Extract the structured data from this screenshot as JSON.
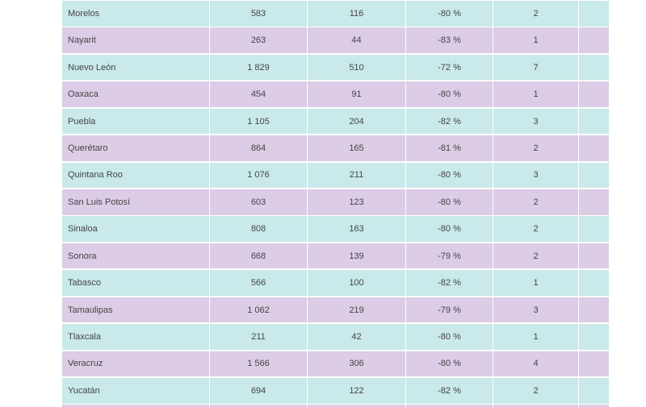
{
  "table": {
    "rows": [
      [
        "Morelos",
        "583",
        "116",
        "-80 %",
        "2"
      ],
      [
        "Nayarit",
        "263",
        "44",
        "-83 %",
        "1"
      ],
      [
        "Nuevo León",
        "1 829",
        "510",
        "-72 %",
        "7"
      ],
      [
        "Oaxaca",
        "454",
        "91",
        "-80 %",
        "1"
      ],
      [
        "Puebla",
        "1 105",
        "204",
        "-82 %",
        "3"
      ],
      [
        "Querétaro",
        "864",
        "165",
        "-81 %",
        "2"
      ],
      [
        "Quintana Roo",
        "1 076",
        "211",
        "-80 %",
        "3"
      ],
      [
        "San Luis Potosí",
        "603",
        "123",
        "-80 %",
        "2"
      ],
      [
        "Sinaloa",
        "808",
        "163",
        "-80 %",
        "2"
      ],
      [
        "Sonora",
        "668",
        "139",
        "-79 %",
        "2"
      ],
      [
        "Tabasco",
        "566",
        "100",
        "-82 %",
        "1"
      ],
      [
        "Tamaulipas",
        "1 062",
        "219",
        "-79 %",
        "3"
      ],
      [
        "Tlaxcala",
        "211",
        "42",
        "-80 %",
        "1"
      ],
      [
        "Veracruz",
        "1 566",
        "306",
        "-80 %",
        "4"
      ],
      [
        "Yucatán",
        "694",
        "122",
        "-82 %",
        "2"
      ]
    ]
  }
}
